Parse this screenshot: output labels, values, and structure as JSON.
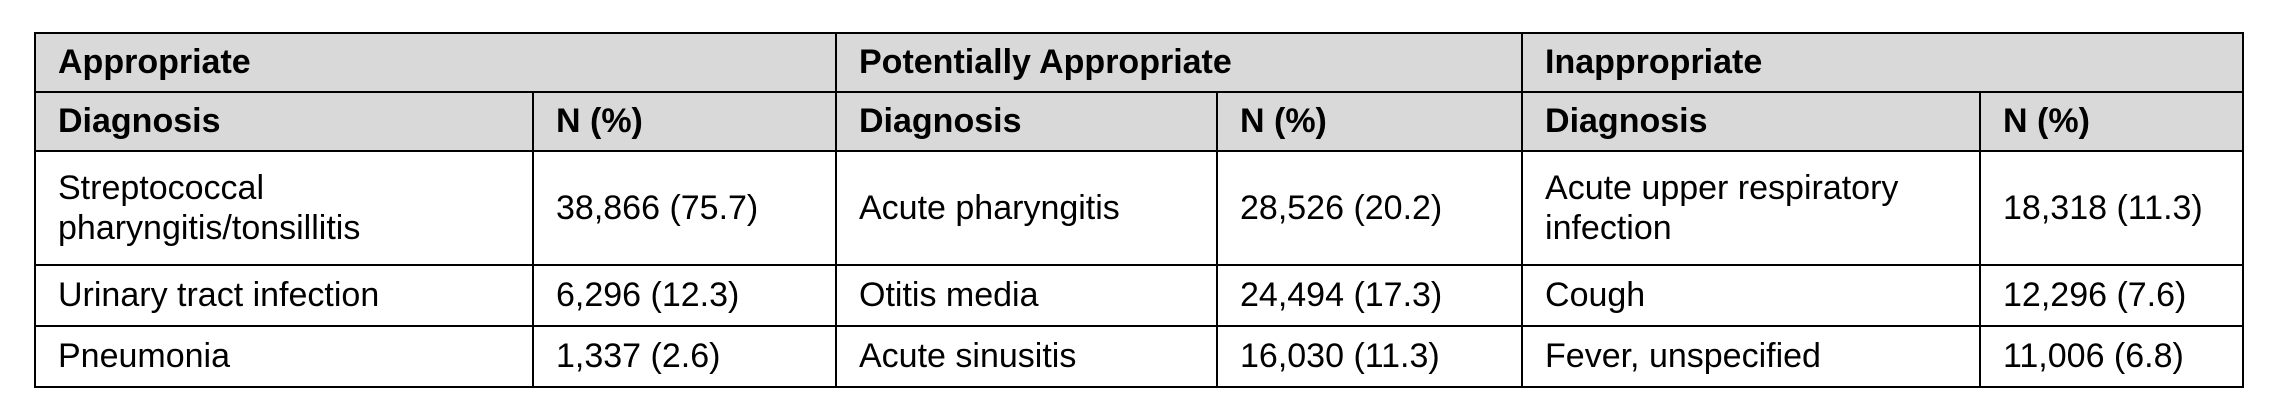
{
  "groups": [
    {
      "title": "Appropriate",
      "diagnosis_header": "Diagnosis",
      "n_header": "N (%)",
      "rows": [
        {
          "diagnosis": "Streptococcal pharyngitis/tonsillitis",
          "n": "38,866 (75.7)"
        },
        {
          "diagnosis": "Urinary tract infection",
          "n": "6,296 (12.3)"
        },
        {
          "diagnosis": "Pneumonia",
          "n": "1,337 (2.6)"
        }
      ]
    },
    {
      "title": "Potentially Appropriate",
      "diagnosis_header": "Diagnosis",
      "n_header": "N (%)",
      "rows": [
        {
          "diagnosis": "Acute pharyngitis",
          "n": "28,526 (20.2)"
        },
        {
          "diagnosis": "Otitis media",
          "n": "24,494 (17.3)"
        },
        {
          "diagnosis": "Acute sinusitis",
          "n": "16,030 (11.3)"
        }
      ]
    },
    {
      "title": "Inappropriate",
      "diagnosis_header": "Diagnosis",
      "n_header": "N (%)",
      "rows": [
        {
          "diagnosis": "Acute upper respiratory infection",
          "n": "18,318 (11.3)"
        },
        {
          "diagnosis": "Cough",
          "n": "12,296 (7.6)"
        },
        {
          "diagnosis": "Fever, unspecified",
          "n": "11,006 (6.8)"
        }
      ]
    }
  ]
}
